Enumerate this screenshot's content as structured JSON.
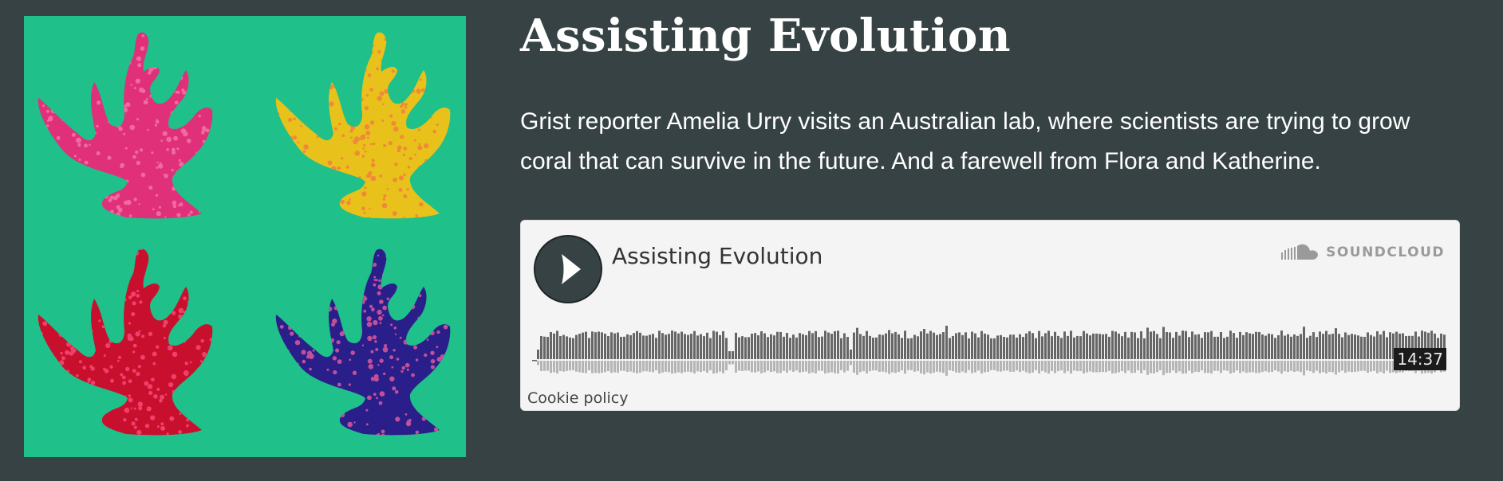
{
  "episode": {
    "title": "Assisting Evolution",
    "description": "Grist reporter Amelia Urry visits an Australian lab, where scientists are trying to grow coral that can survive in the future. And a farewell from Flora and Katherine."
  },
  "player": {
    "track_title": "Assisting Evolution",
    "brand_label": "SOUNDCLOUD",
    "duration": "14:37",
    "cookie_label": "Cookie policy",
    "play_icon": "play-icon",
    "brand_icon": "soundcloud-icon"
  },
  "artwork": {
    "background": "#1fc089",
    "corals": [
      {
        "body": "#e0307a",
        "dots": "#f06aa0"
      },
      {
        "body": "#e8c21a",
        "dots": "#f08a3a"
      },
      {
        "body": "#c8102e",
        "dots": "#f0406a"
      },
      {
        "body": "#2a1e8a",
        "dots": "#c0509a"
      }
    ]
  },
  "colors": {
    "page_bg": "#364243",
    "waveform_played": "#666666",
    "waveform_reflection": "#b5b5b5"
  }
}
